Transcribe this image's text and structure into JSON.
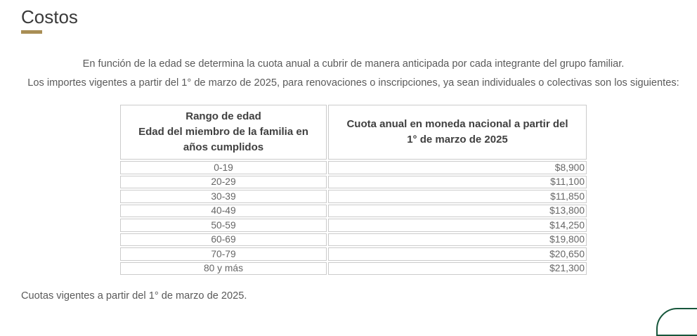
{
  "page": {
    "title": "Costos",
    "accent_color": "#a98e55",
    "intro": {
      "p1": "En función de la edad se determina la cuota anual a cubrir de manera anticipada por cada integrante del grupo familiar.",
      "p2": "Los importes vigentes a partir del 1° de marzo de 2025, para renovaciones o inscripciones, ya sean individuales o colectivas son los siguientes:"
    },
    "footnote": "Cuotas vigentes a partir del 1° de marzo de 2025."
  },
  "table": {
    "headers": {
      "col1_line1": "Rango de edad",
      "col1_line2": "Edad del miembro de la familia en años cumplidos",
      "col2": "Cuota anual en moneda nacional a partir del 1° de marzo de 2025"
    },
    "rows": [
      {
        "range": "0-19",
        "fee": "$8,900"
      },
      {
        "range": "20-29",
        "fee": "$11,100"
      },
      {
        "range": "30-39",
        "fee": "$11,850"
      },
      {
        "range": "40-49",
        "fee": "$13,800"
      },
      {
        "range": "50-59",
        "fee": "$14,250"
      },
      {
        "range": "60-69",
        "fee": "$19,800"
      },
      {
        "range": "70-79",
        "fee": "$20,650"
      },
      {
        "range": "80 y más",
        "fee": "$21,300"
      }
    ]
  },
  "chart_data": {
    "type": "table",
    "title": "Costos",
    "categories": [
      "0-19",
      "20-29",
      "30-39",
      "40-49",
      "50-59",
      "60-69",
      "70-79",
      "80 y más"
    ],
    "values": [
      8900,
      11100,
      11850,
      13800,
      14250,
      19800,
      20650,
      21300
    ],
    "xlabel": "Rango de edad Edad del miembro de la familia en años cumplidos",
    "ylabel": "Cuota anual en moneda nacional a partir del 1° de marzo de 2025"
  },
  "widget": {
    "border_color": "#17573c"
  }
}
